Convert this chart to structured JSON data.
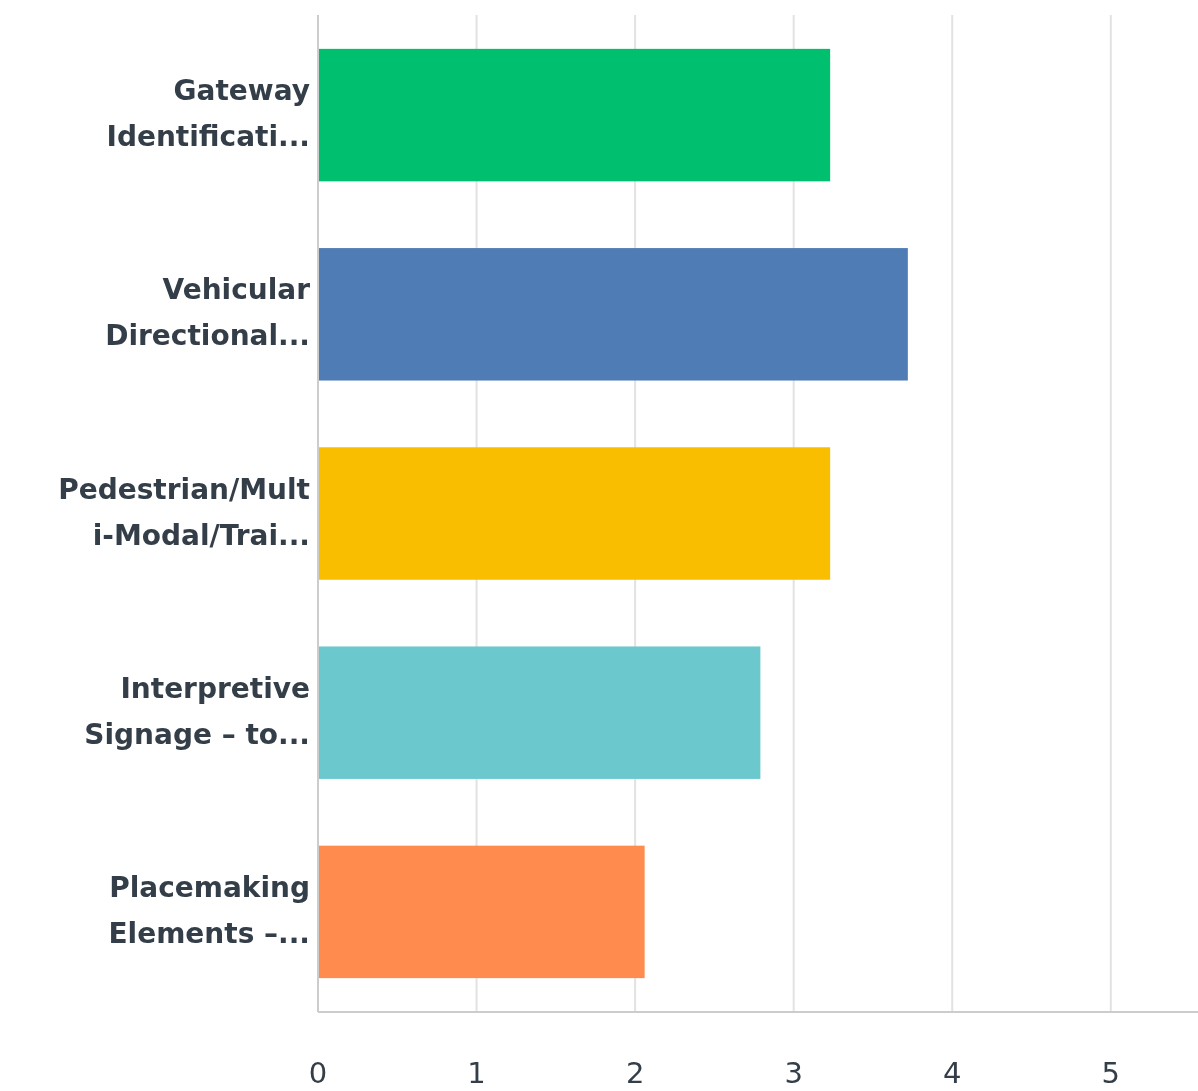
{
  "chart_data": {
    "type": "bar",
    "orientation": "horizontal",
    "categories": [
      "Gateway\nIdentificati...",
      "Vehicular\nDirectional...",
      "Pedestrian/Mult\ni-Modal/Trai...",
      "Interpretive\nSignage – to...",
      "Placemaking\nElements –..."
    ],
    "values": [
      3.23,
      3.72,
      3.23,
      2.79,
      2.06
    ],
    "colors": [
      "#00bf6f",
      "#507cb6",
      "#f9be00",
      "#6bc8cd",
      "#ff8b4f"
    ],
    "xlim": [
      0,
      5.55
    ],
    "xticks": [
      0,
      1,
      2,
      3,
      4,
      5
    ],
    "grid": "x"
  }
}
